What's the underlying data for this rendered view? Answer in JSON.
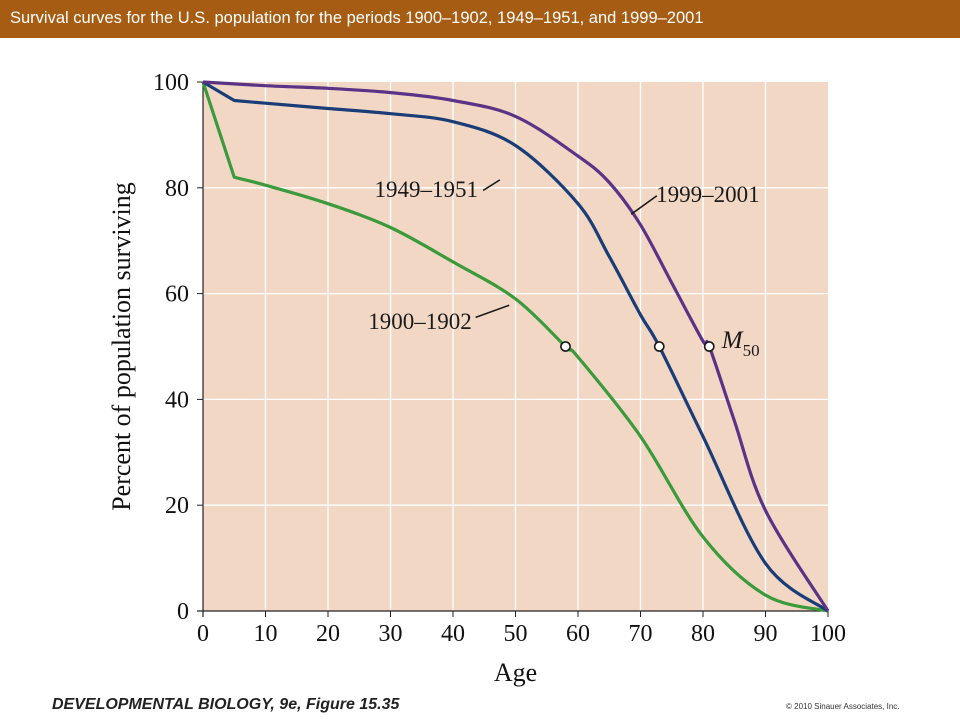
{
  "header": {
    "title": "Survival curves for the U.S. population for the periods 1900–1902, 1949–1951, and 1999–2001"
  },
  "footer": {
    "book": "DEVELOPMENTAL BIOLOGY,",
    "edition": "9e, Figure 15.35",
    "copyright": "© 2010 Sinauer Associates, Inc."
  },
  "colors": {
    "header_bg": "#a65c12",
    "plot_bg": "#f2d8c4",
    "grid": "#ffffff",
    "s1900": "#3a9a3c",
    "s1949": "#1a3d78",
    "s1999": "#5a3286"
  },
  "chart_data": {
    "type": "line",
    "title": "",
    "xlabel": "Age",
    "ylabel": "Percent of population surviving",
    "xlim": [
      0,
      100
    ],
    "ylim": [
      0,
      100
    ],
    "xticks": [
      0,
      10,
      20,
      30,
      40,
      50,
      60,
      70,
      80,
      90,
      100
    ],
    "yticks": [
      0,
      20,
      40,
      60,
      80,
      100
    ],
    "grid": true,
    "series": [
      {
        "name": "1900–1902",
        "x": [
          0,
          5,
          10,
          20,
          30,
          40,
          50,
          58,
          60,
          70,
          80,
          90,
          100
        ],
        "y": [
          100,
          82,
          80.5,
          77,
          72.5,
          66,
          59,
          50,
          48,
          33,
          14,
          3,
          0
        ],
        "label_at": [
          43,
          55
        ]
      },
      {
        "name": "1949–1951",
        "x": [
          0,
          5,
          10,
          20,
          30,
          40,
          50,
          60,
          65,
          70,
          73,
          80,
          90,
          100
        ],
        "y": [
          100,
          96.5,
          96,
          95,
          94,
          92.5,
          88,
          77,
          67,
          56,
          50,
          33,
          9,
          0
        ],
        "label_at": [
          44,
          80
        ]
      },
      {
        "name": "1999–2001",
        "x": [
          0,
          10,
          20,
          30,
          40,
          50,
          60,
          65,
          70,
          75,
          80,
          81,
          85,
          90,
          100
        ],
        "y": [
          100,
          99.3,
          98.8,
          98,
          96.5,
          93.5,
          86,
          81,
          73,
          62,
          51,
          50,
          36,
          19,
          0
        ],
        "label_at": [
          72.5,
          79
        ]
      }
    ],
    "annotations": [
      {
        "text": "M",
        "subscript": "50",
        "x": 83,
        "y": 50.5
      }
    ],
    "markers": [
      {
        "series": "1900–1902",
        "x": 58,
        "y": 50
      },
      {
        "series": "1949–1951",
        "x": 73,
        "y": 50
      },
      {
        "series": "1999–2001",
        "x": 81,
        "y": 50
      }
    ]
  }
}
